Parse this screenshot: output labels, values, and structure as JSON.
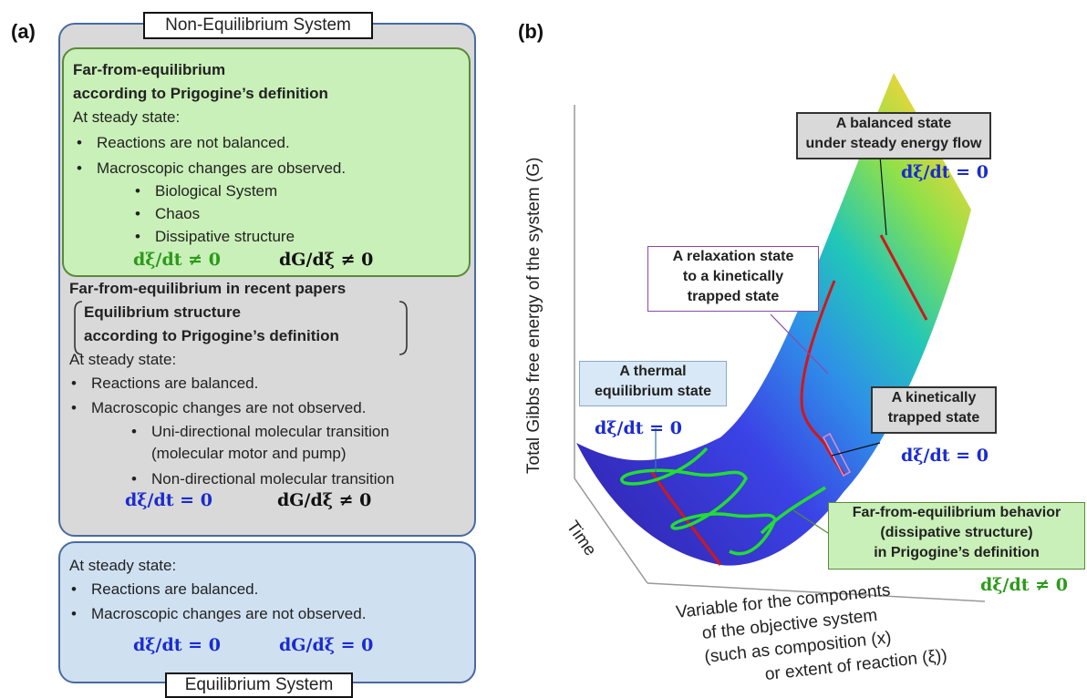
{
  "panel_a": {
    "label": "(a)",
    "top_tag": "Non-Equilibrium System",
    "bottom_tag": "Equilibrium System",
    "green": {
      "title1": "Far-from-equilibrium",
      "title2": "according to Prigogine’s definition",
      "steady": "At steady state:",
      "b1": "Reactions are not balanced.",
      "b2": "Macroscopic changes are observed.",
      "s1": "Biological System",
      "s2": "Chaos",
      "s3": "Dissipative structure",
      "eq1": "dξ/dt ≠ 0",
      "eq2": "dG/dξ ≠ 0"
    },
    "grey": {
      "title": "Far-from-equilibrium in recent papers",
      "bracket1": "Equilibrium structure",
      "bracket2": "according to Prigogine’s definition",
      "steady": "At steady state:",
      "b1": "Reactions are balanced.",
      "b2": "Macroscopic changes are not observed.",
      "s1a": "Uni-directional molecular transition",
      "s1b": "(molecular motor and pump)",
      "s2": "Non-directional molecular transition",
      "eq1": "dξ/dt = 0",
      "eq2": "dG/dξ ≠ 0"
    },
    "blue": {
      "steady": "At steady state:",
      "b1": "Reactions are balanced.",
      "b2": "Macroscopic changes are not observed.",
      "eq1": "dξ/dt = 0",
      "eq2": "dG/dξ = 0"
    }
  },
  "panel_b": {
    "label": "(b)",
    "y_axis": "Total Gibbs free energy of the system (G)",
    "time_axis": "Time",
    "x_axis": [
      "Variable for the components",
      "of the objective system",
      "(such as composition (x)",
      "or extent of reaction (ξ))"
    ],
    "callouts": {
      "balanced": [
        "A balanced state",
        "under steady energy flow"
      ],
      "relaxation": [
        "A relaxation state",
        "to a kinetically",
        "trapped state"
      ],
      "thermal": [
        "A thermal",
        "equilibrium state"
      ],
      "kinetic": [
        "A kinetically",
        "trapped state"
      ],
      "far": [
        "Far-from-equilibrium behavior",
        "(dissipative structure)",
        "in Prigogine’s definition"
      ]
    },
    "eqs": {
      "balanced": "dξ/dt = 0",
      "thermal": "dξ/dt = 0",
      "kinetic": "dξ/dt = 0",
      "far": "dξ/dt ≠ 0"
    }
  },
  "colors": {
    "math_blue": "#1a2bd0",
    "math_green": "#2b9a1a",
    "green_box": "#c9f0b8",
    "grey_box": "#d9d9d9",
    "blue_box": "#cfe0f1",
    "trajectory_red": "#d01818",
    "trajectory_green": "#22dd33"
  }
}
